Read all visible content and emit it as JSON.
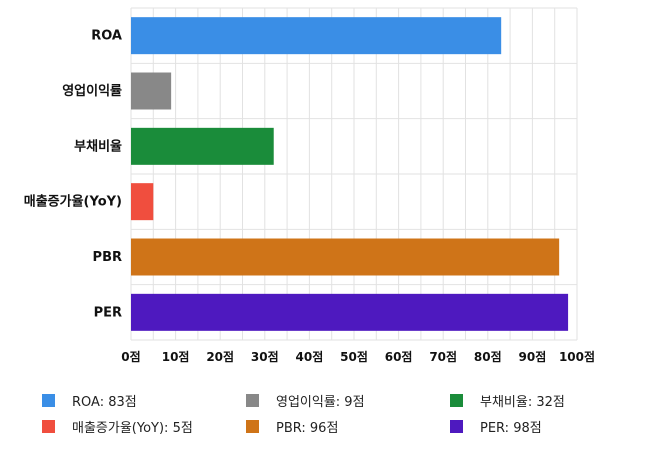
{
  "chart_data": {
    "type": "bar",
    "orientation": "horizontal",
    "categories": [
      "ROA",
      "영업이익률",
      "부채비율",
      "매출증가율(YoY)",
      "PBR",
      "PER"
    ],
    "values": [
      83,
      9,
      32,
      5,
      96,
      98
    ],
    "unit": "점",
    "xlim": [
      0,
      100
    ],
    "ticks": [
      "0점",
      "10점",
      "20점",
      "30점",
      "40점",
      "50점",
      "60점",
      "70점",
      "80점",
      "90점",
      "100점"
    ],
    "colors": [
      "#3a8ee6",
      "#888888",
      "#1a8c3a",
      "#f04e3e",
      "#cf7418",
      "#4e19bf"
    ],
    "grid": true,
    "legend": {
      "placement": "bottom",
      "entries": [
        "ROA: 83점",
        "영업이익률: 9점",
        "부채비율: 32점",
        "매출증가율(YoY): 5점",
        "PBR: 96점",
        "PER: 98점"
      ]
    }
  }
}
